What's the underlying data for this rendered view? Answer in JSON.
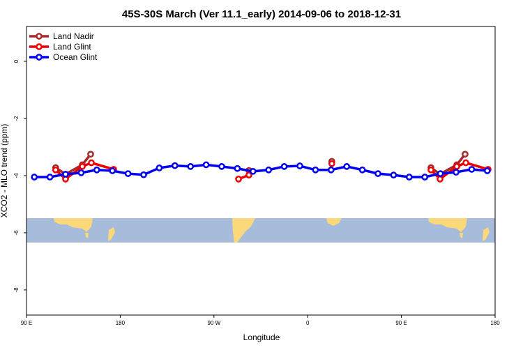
{
  "chart_data": {
    "type": "line",
    "title": "45S-30S March (Ver 11.1_early)   2014-09-06 to 2018-12-31",
    "x_label": "Longitude",
    "y_label": "XCO2 - MLO trend (ppm)",
    "xlim": [
      90,
      540
    ],
    "ylim": [
      1.22,
      -8.88
    ],
    "xticks": [
      {
        "value": 90,
        "label": "90 E"
      },
      180,
      {
        "value": 270,
        "label": "90 W"
      },
      {
        "value": 360,
        "label": "0"
      },
      {
        "value": 450,
        "label": "90 E"
      },
      {
        "value": 540,
        "label": "180"
      }
    ],
    "yticks": [
      0,
      -2,
      -4,
      -6,
      -8
    ],
    "legend": "top-left",
    "series": [
      {
        "name": "Land Nadir",
        "color": "#a52a2a",
        "x": [
          118,
          127.5,
          143.6,
          151.6,
          null,
          303.6,
          null,
          383.2,
          null,
          478.4,
          487.1,
          503.2,
          511.2
        ],
        "values": [
          -3.72,
          -3.95,
          -3.62,
          -3.25,
          null,
          -3.82,
          null,
          -3.5,
          null,
          -3.72,
          -3.95,
          -3.62,
          -3.25
        ]
      },
      {
        "name": "Land Glint",
        "color": "#ee0000",
        "x": [
          118,
          127.5,
          143.6,
          152.3,
          173.7,
          null,
          293.6,
          303.6,
          null,
          383.2,
          null,
          478.4,
          487.1,
          503.2,
          511.9,
          533.3
        ],
        "values": [
          -3.8,
          -4.12,
          -3.68,
          -3.55,
          -3.78,
          null,
          -4.12,
          -3.98,
          null,
          -3.58,
          null,
          -3.8,
          -4.12,
          -3.68,
          -3.55,
          -3.78
        ]
      },
      {
        "name": "Ocean Glint",
        "color": "#0000ee",
        "x": [
          97.5,
          112.5,
          127.5,
          142.5,
          157.5,
          172.5,
          187.5,
          202.5,
          217.5,
          232.5,
          247.5,
          262.5,
          277.5,
          292.5,
          307.5,
          322.5,
          337.5,
          352.5,
          367.5,
          382.5,
          397.5,
          412.5,
          427.5,
          442.5,
          457.5,
          472.5,
          487.5,
          502.5,
          517.5,
          532.5
        ],
        "values": [
          -4.05,
          -4.05,
          -3.95,
          -3.9,
          -3.8,
          -3.83,
          -3.93,
          -3.97,
          -3.73,
          -3.65,
          -3.68,
          -3.62,
          -3.68,
          -3.75,
          -3.85,
          -3.8,
          -3.68,
          -3.66,
          -3.8,
          -3.8,
          -3.68,
          -3.8,
          -3.93,
          -3.98,
          -4.05,
          -4.05,
          -3.93,
          -3.88,
          -3.78,
          -3.83
        ]
      }
    ]
  }
}
